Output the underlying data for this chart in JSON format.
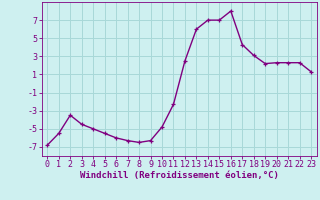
{
  "x": [
    0,
    1,
    2,
    3,
    4,
    5,
    6,
    7,
    8,
    9,
    10,
    11,
    12,
    13,
    14,
    15,
    16,
    17,
    18,
    19,
    20,
    21,
    22,
    23
  ],
  "y": [
    -6.8,
    -5.5,
    -3.5,
    -4.5,
    -5.0,
    -5.5,
    -6.0,
    -6.3,
    -6.5,
    -6.3,
    -4.8,
    -2.3,
    2.5,
    6.0,
    7.0,
    7.0,
    8.0,
    4.3,
    3.1,
    2.2,
    2.3,
    2.3,
    2.3,
    1.3
  ],
  "line_color": "#800080",
  "marker": "+",
  "marker_color": "#800080",
  "bg_color": "#cef0f0",
  "grid_color": "#a8d8d8",
  "xlabel": "Windchill (Refroidissement éolien,°C)",
  "xlim": [
    -0.5,
    23.5
  ],
  "ylim": [
    -8,
    9
  ],
  "yticks": [
    -7,
    -5,
    -3,
    -1,
    1,
    3,
    5,
    7
  ],
  "xticks": [
    0,
    1,
    2,
    3,
    4,
    5,
    6,
    7,
    8,
    9,
    10,
    11,
    12,
    13,
    14,
    15,
    16,
    17,
    18,
    19,
    20,
    21,
    22,
    23
  ],
  "tick_color": "#800080",
  "axis_color": "#800080",
  "font_color": "#800080",
  "xlabel_fontsize": 6.5,
  "tick_fontsize": 6.0,
  "linewidth": 1.0,
  "markersize": 3.5
}
